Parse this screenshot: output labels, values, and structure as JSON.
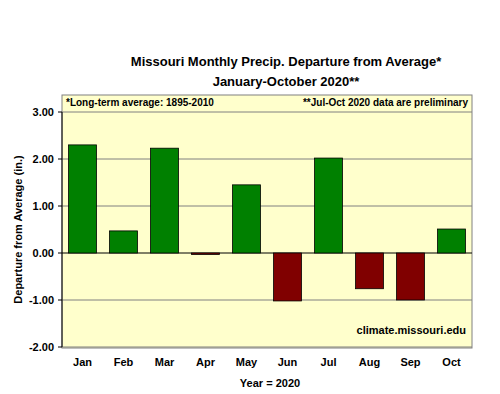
{
  "chart_data": {
    "type": "bar",
    "title": "Missouri Monthly Precip. Departure from Average*",
    "subtitle": "January-October 2020**",
    "annotations": [
      "*Long-term average: 1895-2010",
      "**Jul-Oct 2020 data are preliminary",
      "climate.missouri.edu"
    ],
    "x_label": "Year = 2020",
    "y_label": "Departure from Average (in.)",
    "categories": [
      "Jan",
      "Feb",
      "Mar",
      "Apr",
      "May",
      "Jun",
      "Jul",
      "Aug",
      "Sep",
      "Oct"
    ],
    "values": [
      2.3,
      0.47,
      2.23,
      -0.03,
      1.45,
      -1.02,
      2.02,
      -0.76,
      -1.0,
      0.51
    ],
    "colors": [
      "#008000",
      "#008000",
      "#008000",
      "#800000",
      "#008000",
      "#800000",
      "#008000",
      "#800000",
      "#800000",
      "#008000"
    ],
    "ylim": [
      -2,
      3
    ],
    "yticks": [
      {
        "value": -2,
        "label": "-2.00"
      },
      {
        "value": -1,
        "label": "-1.00"
      },
      {
        "value": 0,
        "label": "0.00"
      },
      {
        "value": 1,
        "label": "1.00"
      },
      {
        "value": 2,
        "label": "2.00"
      },
      {
        "value": 3,
        "label": "3.00"
      }
    ],
    "grid": true
  }
}
